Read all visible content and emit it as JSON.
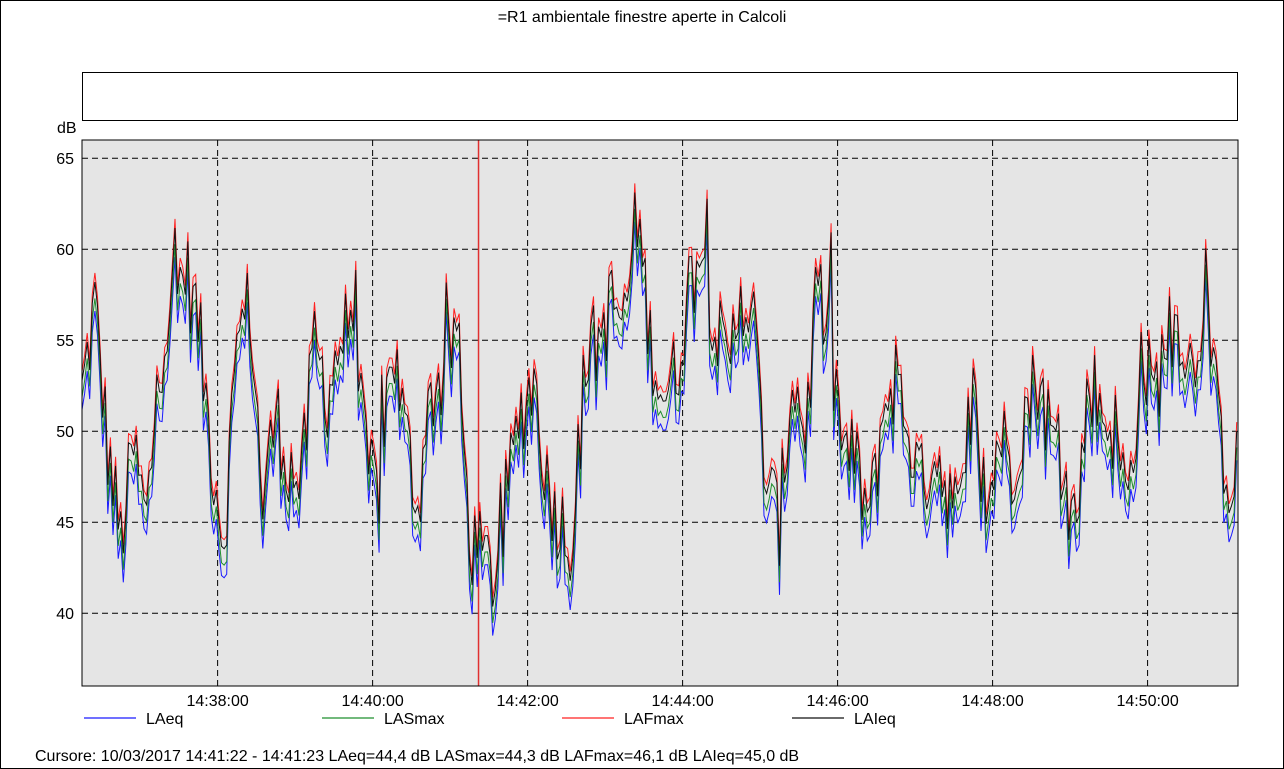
{
  "chart_data": {
    "type": "line",
    "title": "=R1 ambientale finestre aperte in Calcoli",
    "ylabel": "dB",
    "xlabel": "",
    "ylim": [
      36,
      66
    ],
    "xlim": [
      "14:36:15",
      "14:51:10"
    ],
    "y_ticks": [
      40,
      45,
      50,
      55,
      60,
      65
    ],
    "x_ticks": [
      "14:38:00",
      "14:40:00",
      "14:42:00",
      "14:44:00",
      "14:46:00",
      "14:48:00",
      "14:50:00"
    ],
    "grid": true,
    "cursor_time": "14:41:22",
    "cursor_color": "#e03030",
    "series": [
      {
        "name": "LAeq",
        "color": "#1a1aff",
        "offset": -1.6
      },
      {
        "name": "LASmax",
        "color": "#1f8f2f",
        "offset": -0.9
      },
      {
        "name": "LAFmax",
        "color": "#ff2020",
        "offset": 0.5
      },
      {
        "name": "LAIeq",
        "color": "#111111",
        "offset": 0.0
      }
    ],
    "envelope": {
      "series_ref": "LAIeq",
      "x": [
        "14:36:15",
        "14:36:25",
        "14:36:35",
        "14:36:45",
        "14:36:55",
        "14:37:05",
        "14:37:15",
        "14:37:25",
        "14:37:35",
        "14:37:45",
        "14:37:55",
        "14:38:05",
        "14:38:15",
        "14:38:25",
        "14:38:35",
        "14:38:45",
        "14:38:55",
        "14:39:05",
        "14:39:15",
        "14:39:25",
        "14:39:35",
        "14:39:45",
        "14:39:55",
        "14:40:05",
        "14:40:15",
        "14:40:25",
        "14:40:35",
        "14:40:45",
        "14:40:55",
        "14:41:05",
        "14:41:15",
        "14:41:25",
        "14:41:35",
        "14:41:45",
        "14:41:55",
        "14:42:05",
        "14:42:15",
        "14:42:25",
        "14:42:35",
        "14:42:45",
        "14:42:55",
        "14:43:05",
        "14:43:15",
        "14:43:25",
        "14:43:35",
        "14:43:45",
        "14:43:55",
        "14:44:05",
        "14:44:15",
        "14:44:25",
        "14:44:35",
        "14:44:45",
        "14:44:55",
        "14:45:05",
        "14:45:15",
        "14:45:25",
        "14:45:35",
        "14:45:45",
        "14:45:55",
        "14:46:05",
        "14:46:15",
        "14:46:25",
        "14:46:35",
        "14:46:45",
        "14:46:55",
        "14:47:05",
        "14:47:15",
        "14:47:25",
        "14:47:35",
        "14:47:45",
        "14:47:55",
        "14:48:05",
        "14:48:15",
        "14:48:25",
        "14:48:35",
        "14:48:45",
        "14:48:55",
        "14:49:05",
        "14:49:15",
        "14:49:25",
        "14:49:35",
        "14:49:45",
        "14:49:55",
        "14:50:05",
        "14:50:15",
        "14:50:25",
        "14:50:35",
        "14:50:45",
        "14:50:55",
        "14:51:05",
        "14:51:10"
      ],
      "y": [
        52,
        57,
        49,
        44,
        49,
        45,
        54,
        57,
        59,
        56,
        49,
        44,
        55,
        57,
        46,
        51,
        48,
        47,
        55,
        52,
        55,
        56,
        48,
        47,
        55,
        50,
        46,
        52,
        53,
        56,
        44,
        43,
        42,
        47,
        51,
        53,
        47,
        45,
        44,
        54,
        55,
        57,
        56,
        62,
        55,
        52,
        53,
        58,
        60,
        56,
        53,
        58,
        56,
        47,
        45,
        53,
        50,
        58,
        54,
        49,
        48,
        45,
        51,
        53,
        50,
        47,
        49,
        47,
        45,
        52,
        45,
        50,
        48,
        51,
        53,
        50,
        47,
        45,
        53,
        51,
        50,
        46,
        54,
        52,
        55,
        56,
        53,
        58,
        50,
        47,
        50
      ]
    }
  },
  "legend": [
    "LAeq",
    "LASmax",
    "LAFmax",
    "LAIeq"
  ],
  "status_bar": {
    "text": "Cursore: 10/03/2017 14:41:22 - 14:41:23  LAeq=44,4 dB  LASmax=44,3 dB  LAFmax=46,1 dB  LAIeq=45,0 dB"
  }
}
